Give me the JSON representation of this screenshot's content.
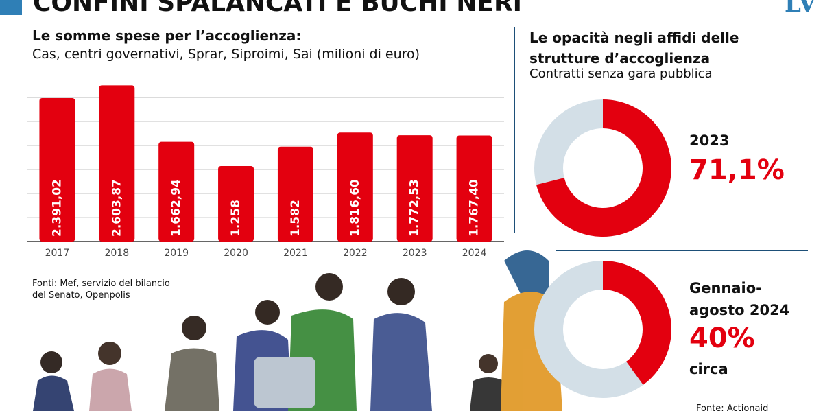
{
  "header": {
    "title": "CONFINI SPALANCATI E BUCHI NERI",
    "logo": "LV"
  },
  "chart_data": [
    {
      "type": "bar",
      "title": "Le somme spese per l’accoglienza:",
      "subtitle": "Cas, centri governativi, Sprar, Siproimi, Sai (milioni di euro)",
      "categories": [
        "2017",
        "2018",
        "2019",
        "2020",
        "2021",
        "2022",
        "2023",
        "2024"
      ],
      "values": [
        2391.02,
        2603.87,
        1662.94,
        1258,
        1582,
        1816.6,
        1772.53,
        1767.4
      ],
      "value_labels": [
        "2.391,02",
        "2.603,87",
        "1.662,94",
        "1.258",
        "1.582",
        "1.816,60",
        "1.772,53",
        "1.767,40"
      ],
      "color": "#e3000f",
      "ylim": [
        0,
        2700
      ],
      "yticks": [
        400,
        800,
        1200,
        1600,
        2000,
        2400
      ],
      "grid": true,
      "source": "Fonti: Mef, servizio del bilancio del Senato, Openpolis"
    },
    {
      "type": "donut",
      "title": "Le opacità negli affidi delle strutture d’accoglienza",
      "subtitle": "Contratti senza gara pubblica",
      "categories": [
        "2023"
      ],
      "values": [
        71.1
      ],
      "value_labels": [
        "71,1%"
      ],
      "color": "#e3000f",
      "track_color": "#d3dfe7"
    },
    {
      "type": "donut",
      "categories": [
        "Gennaio-agosto 2024"
      ],
      "values": [
        40
      ],
      "value_labels": [
        "40%"
      ],
      "note": "circa",
      "color": "#e3000f",
      "track_color": "#d3dfe7",
      "source": "Fonte: Actionaid"
    }
  ]
}
